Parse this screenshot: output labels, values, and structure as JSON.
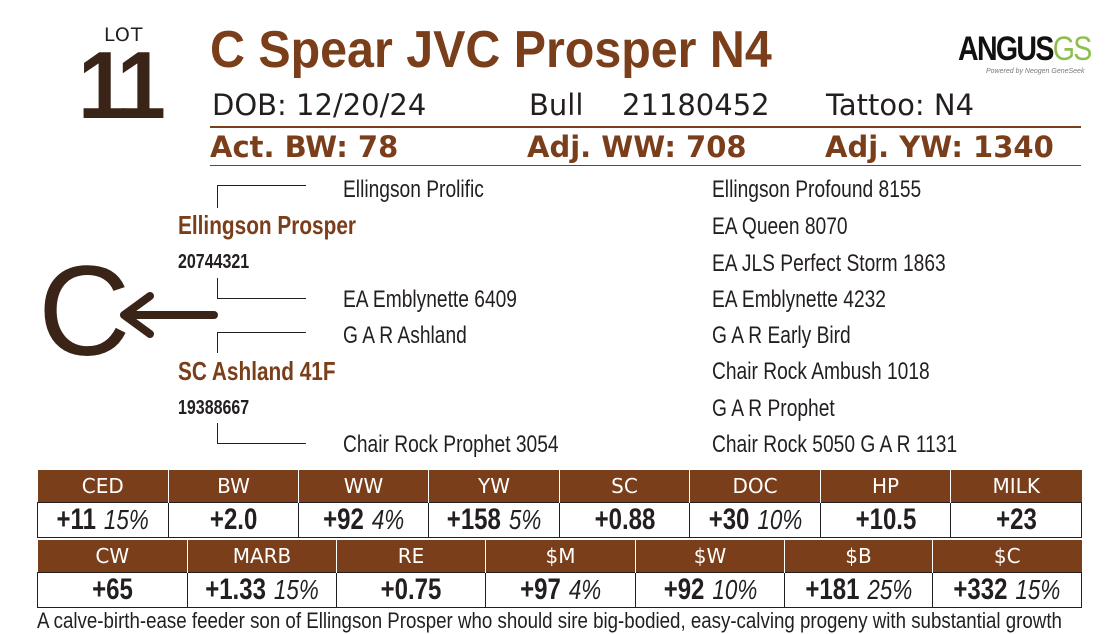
{
  "lot": {
    "label": "LOT",
    "number": "11"
  },
  "title": "C Spear JVC Prosper N4",
  "logo": {
    "main": "ANGUS",
    "accent": "GS",
    "tagline": "Powered by Neogen GeneSeek"
  },
  "info": {
    "dob": "DOB: 12/20/24",
    "sex": "Bull",
    "reg": "21180452",
    "tattoo": "Tattoo: N4",
    "bw": "Act. BW: 78",
    "ww": "Adj. WW: 708",
    "yw": "Adj. YW: 1340"
  },
  "pedigree": {
    "sire": {
      "name": "Ellingson Prosper",
      "reg": "20744321",
      "sire": "Ellingson Prolific",
      "dam": "EA Emblynette 6409"
    },
    "dam": {
      "name": "SC Ashland 41F",
      "reg": "19388667",
      "sire": "G A R Ashland",
      "dam": "Chair Rock Prophet 3054"
    },
    "great_grandparents": [
      "Ellingson Profound 8155",
      "EA Queen 8070",
      "EA JLS Perfect Storm 1863",
      "EA Emblynette 4232",
      "G A R Early Bird",
      "Chair Rock Ambush 1018",
      "G A R Prophet",
      "Chair Rock 5050 G A R 1131"
    ]
  },
  "mark": {
    "letter": "C",
    "arrow_icon": "left-arrow-icon"
  },
  "epd_row1": [
    {
      "label": "CED",
      "value": "+11",
      "pct": "15%"
    },
    {
      "label": "BW",
      "value": "+2.0",
      "pct": ""
    },
    {
      "label": "WW",
      "value": "+92",
      "pct": "4%"
    },
    {
      "label": "YW",
      "value": "+158",
      "pct": "5%"
    },
    {
      "label": "SC",
      "value": "+0.88",
      "pct": ""
    },
    {
      "label": "DOC",
      "value": "+30",
      "pct": "10%"
    },
    {
      "label": "HP",
      "value": "+10.5",
      "pct": ""
    },
    {
      "label": "MILK",
      "value": "+23",
      "pct": ""
    }
  ],
  "epd_row2": [
    {
      "label": "CW",
      "value": "+65",
      "pct": ""
    },
    {
      "label": "MARB",
      "value": "+1.33",
      "pct": "15%"
    },
    {
      "label": "RE",
      "value": "+0.75",
      "pct": ""
    },
    {
      "label": "$M",
      "value": "+97",
      "pct": "4%"
    },
    {
      "label": "$W",
      "value": "+92",
      "pct": "10%"
    },
    {
      "label": "$B",
      "value": "+181",
      "pct": "25%"
    },
    {
      "label": "$C",
      "value": "+332",
      "pct": "15%"
    }
  ],
  "footer": "A calve-birth-ease feeder son of Ellingson Prosper who should sire big-bodied, easy-calving progeny with substantial growth",
  "colors": {
    "brown": "#7a3e1a",
    "dark": "#3a2418",
    "logo_green": "#8dbf4f"
  }
}
